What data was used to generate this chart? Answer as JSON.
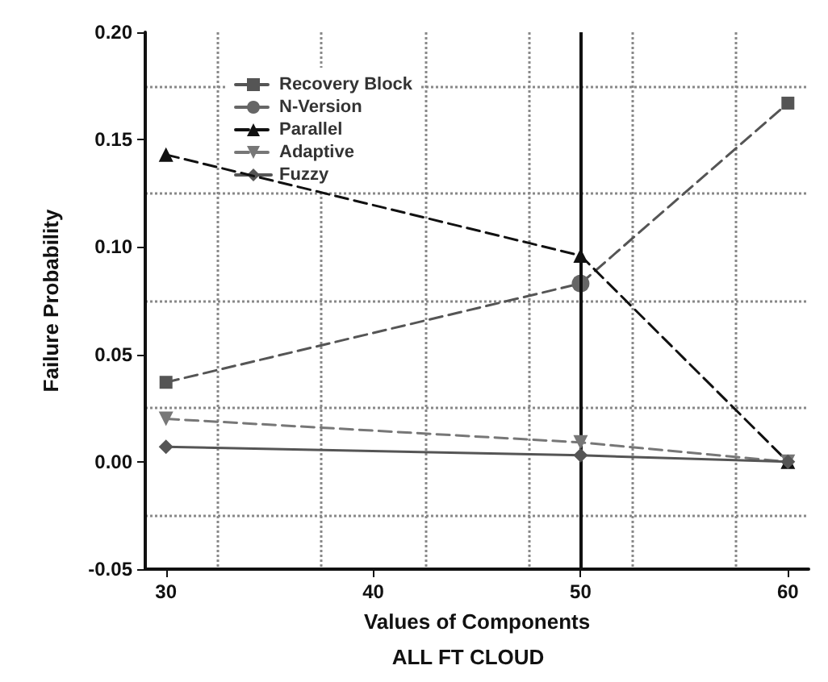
{
  "chart_data": {
    "type": "line",
    "title": "ALL FT CLOUD",
    "xlabel": "Values of Components",
    "ylabel": "Failure Probability",
    "x": [
      30,
      50,
      60
    ],
    "series": [
      {
        "name": "Recovery Block",
        "color": "#555555",
        "values": [
          0.037,
          0.083,
          0.167
        ],
        "marker": "square",
        "line_style": "dashed"
      },
      {
        "name": "N-Version",
        "color": "#666666",
        "values": [
          null,
          0.083,
          null
        ],
        "marker": "circle",
        "line_style": "dashed"
      },
      {
        "name": "Parallel",
        "color": "#111111",
        "values": [
          0.143,
          0.096,
          0.0
        ],
        "marker": "triangle",
        "line_style": "dashed"
      },
      {
        "name": "Adaptive",
        "color": "#777777",
        "values": [
          0.02,
          0.009,
          0.0
        ],
        "marker": "triangle-down",
        "line_style": "dashed"
      },
      {
        "name": "Fuzzy",
        "color": "#555555",
        "values": [
          0.007,
          0.003,
          0.0
        ],
        "marker": "diamond",
        "line_style": "solid"
      }
    ],
    "xlim": [
      29,
      61
    ],
    "xticks": [
      30,
      40,
      50,
      60
    ],
    "ylim": [
      -0.05,
      0.2
    ],
    "yticks": [
      -0.05,
      {
        "value": 0,
        "label": "0.00"
      },
      0.05,
      {
        "value": 0.1,
        "label": "0.10"
      },
      0.15,
      {
        "value": 0.2,
        "label": "0.20"
      }
    ],
    "grid": true,
    "legend": "top left",
    "ref_lines": [
      {
        "axis": "x",
        "value": 50,
        "color": "#111111",
        "line_style": "solid"
      }
    ]
  }
}
